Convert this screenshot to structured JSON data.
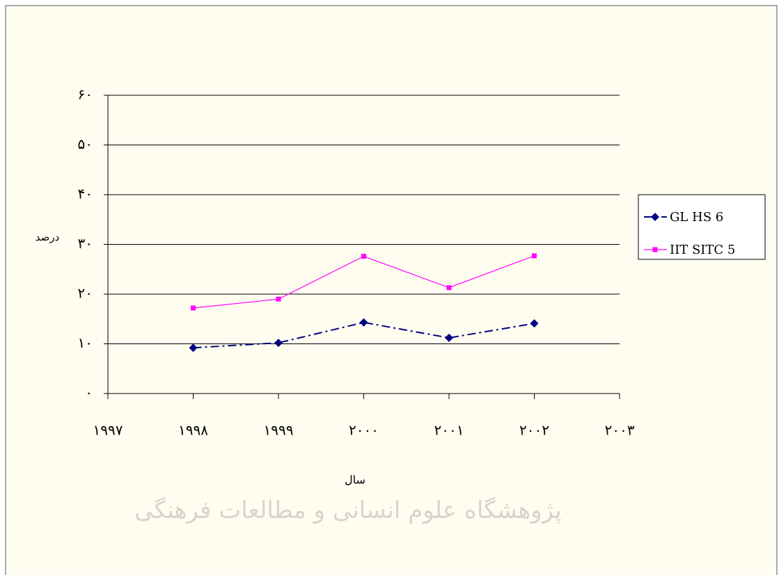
{
  "chart_data": {
    "type": "line",
    "x_label": "سال",
    "y_label": "درصد",
    "watermark": "پژوهشگاه علوم انسانی و مطالعات فرهنگی",
    "x": [
      1998,
      1999,
      2000,
      2001,
      2002
    ],
    "series": [
      {
        "name": "GL HS 6",
        "color": "#000080",
        "marker": "diamond",
        "dash": "dash-dot",
        "values": [
          9.2,
          10.2,
          14.3,
          11.2,
          14.1
        ]
      },
      {
        "name": "IIT SITC 5",
        "color": "#ff00ff",
        "marker": "square",
        "dash": "solid",
        "values": [
          17.2,
          19.0,
          27.6,
          21.3,
          27.7
        ]
      }
    ],
    "xlim": [
      1997,
      2003
    ],
    "xticks": [
      {
        "value": 1997,
        "label": "۱۹۹۷"
      },
      {
        "value": 1998,
        "label": "۱۹۹۸"
      },
      {
        "value": 1999,
        "label": "۱۹۹۹"
      },
      {
        "value": 2000,
        "label": "۲۰۰۰"
      },
      {
        "value": 2001,
        "label": "۲۰۰۱"
      },
      {
        "value": 2002,
        "label": "۲۰۰۲"
      },
      {
        "value": 2003,
        "label": "۲۰۰۳"
      }
    ],
    "ylim": [
      0,
      60
    ],
    "yticks": [
      {
        "value": 0,
        "label": "۰"
      },
      {
        "value": 10,
        "label": "۱۰"
      },
      {
        "value": 20,
        "label": "۲۰"
      },
      {
        "value": 30,
        "label": "۳۰"
      },
      {
        "value": 40,
        "label": "۴۰"
      },
      {
        "value": 50,
        "label": "۵۰"
      },
      {
        "value": 60,
        "label": "۶۰"
      }
    ],
    "grid": true,
    "legend": "right"
  }
}
